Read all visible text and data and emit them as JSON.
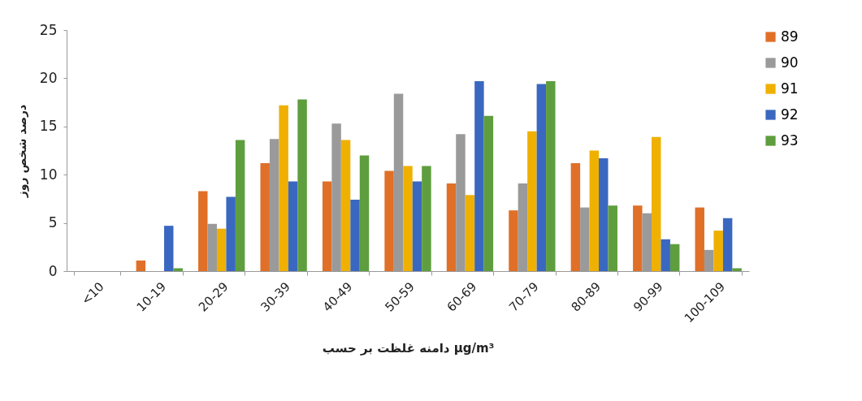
{
  "chart_data": {
    "type": "bar",
    "xlabel": "دامنه غلظت بر حسب µg/m³",
    "ylabel": "درصد شخص روز",
    "categories": [
      "<10",
      "10-19",
      "20-29",
      "30-39",
      "40-49",
      "50-59",
      "60-69",
      "70-79",
      "80-89",
      "90-99",
      "100-109"
    ],
    "series": [
      {
        "name": "89",
        "color": "#e07028",
        "values": [
          0,
          1.1,
          8.3,
          11.2,
          9.3,
          10.4,
          9.1,
          6.3,
          11.2,
          6.8,
          6.6
        ]
      },
      {
        "name": "90",
        "color": "#9a9a9a",
        "values": [
          0,
          0,
          4.9,
          13.7,
          15.3,
          18.4,
          14.2,
          9.1,
          6.6,
          6.0,
          2.2
        ]
      },
      {
        "name": "91",
        "color": "#f0b000",
        "values": [
          0,
          0,
          4.4,
          17.2,
          13.6,
          10.9,
          7.9,
          14.5,
          12.5,
          13.9,
          4.2
        ]
      },
      {
        "name": "92",
        "color": "#3a68c0",
        "values": [
          0,
          4.7,
          7.7,
          9.3,
          7.4,
          9.3,
          19.7,
          19.4,
          11.7,
          3.3,
          5.5
        ]
      },
      {
        "name": "93",
        "color": "#5e9e3e",
        "values": [
          0,
          0.3,
          13.6,
          17.8,
          12.0,
          10.9,
          16.1,
          19.7,
          6.8,
          2.8,
          0.3
        ]
      }
    ],
    "ylim": [
      0,
      25
    ],
    "yticks": [
      0,
      5,
      10,
      15,
      20,
      25
    ],
    "grid": false,
    "legend": "right"
  }
}
